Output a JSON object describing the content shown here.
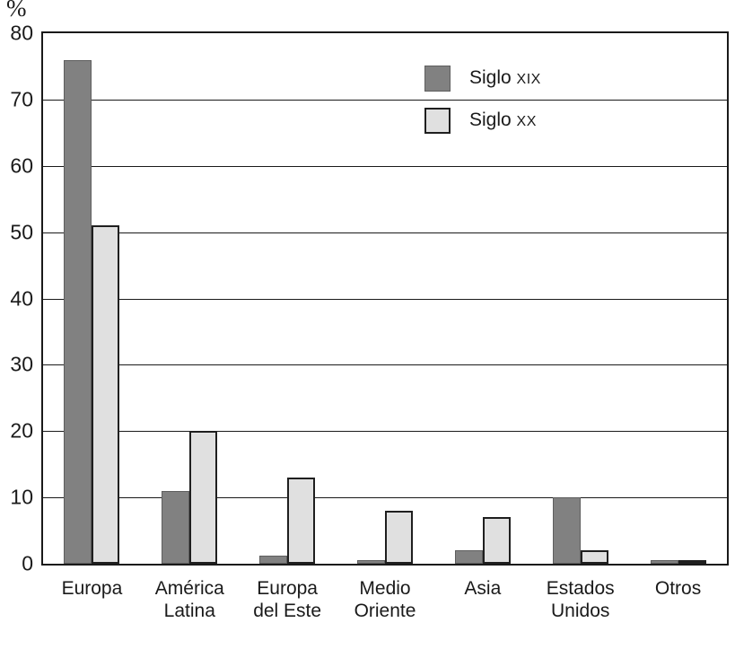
{
  "chart_data": {
    "type": "bar",
    "title": "",
    "ylabel": "%",
    "xlabel": "",
    "ylim": [
      0,
      80
    ],
    "yticks": [
      80,
      70,
      60,
      50,
      40,
      30,
      20,
      10,
      0
    ],
    "grid": true,
    "legend_position": "top-right-inside",
    "categories": [
      "Europa",
      "América Latina",
      "Europa del Este",
      "Medio Oriente",
      "Asia",
      "Estados Unidos",
      "Otros"
    ],
    "category_label_lines": [
      [
        "Europa"
      ],
      [
        "América",
        "Latina"
      ],
      [
        "Europa",
        "del Este"
      ],
      [
        "Medio",
        "Oriente"
      ],
      [
        "Asia"
      ],
      [
        "Estados",
        "Unidos"
      ],
      [
        "Otros"
      ]
    ],
    "series": [
      {
        "name": "Siglo XIX",
        "legend_word": "Siglo",
        "legend_numeral": "xix",
        "fill": "#818181",
        "border": "#5e5e5e",
        "values": [
          76,
          11,
          1.2,
          0.5,
          2,
          10,
          0.6
        ]
      },
      {
        "name": "Siglo XX",
        "legend_word": "Siglo",
        "legend_numeral": "xx",
        "fill": "#e0e0e0",
        "border": "#1f1f1f",
        "values": [
          51,
          20,
          13,
          8,
          7,
          2,
          0.6
        ]
      }
    ],
    "colors": {
      "axis": "#1a1a1a",
      "gridline": "#1a1a1a",
      "text": "#1a1a1a",
      "background": "#ffffff"
    }
  }
}
